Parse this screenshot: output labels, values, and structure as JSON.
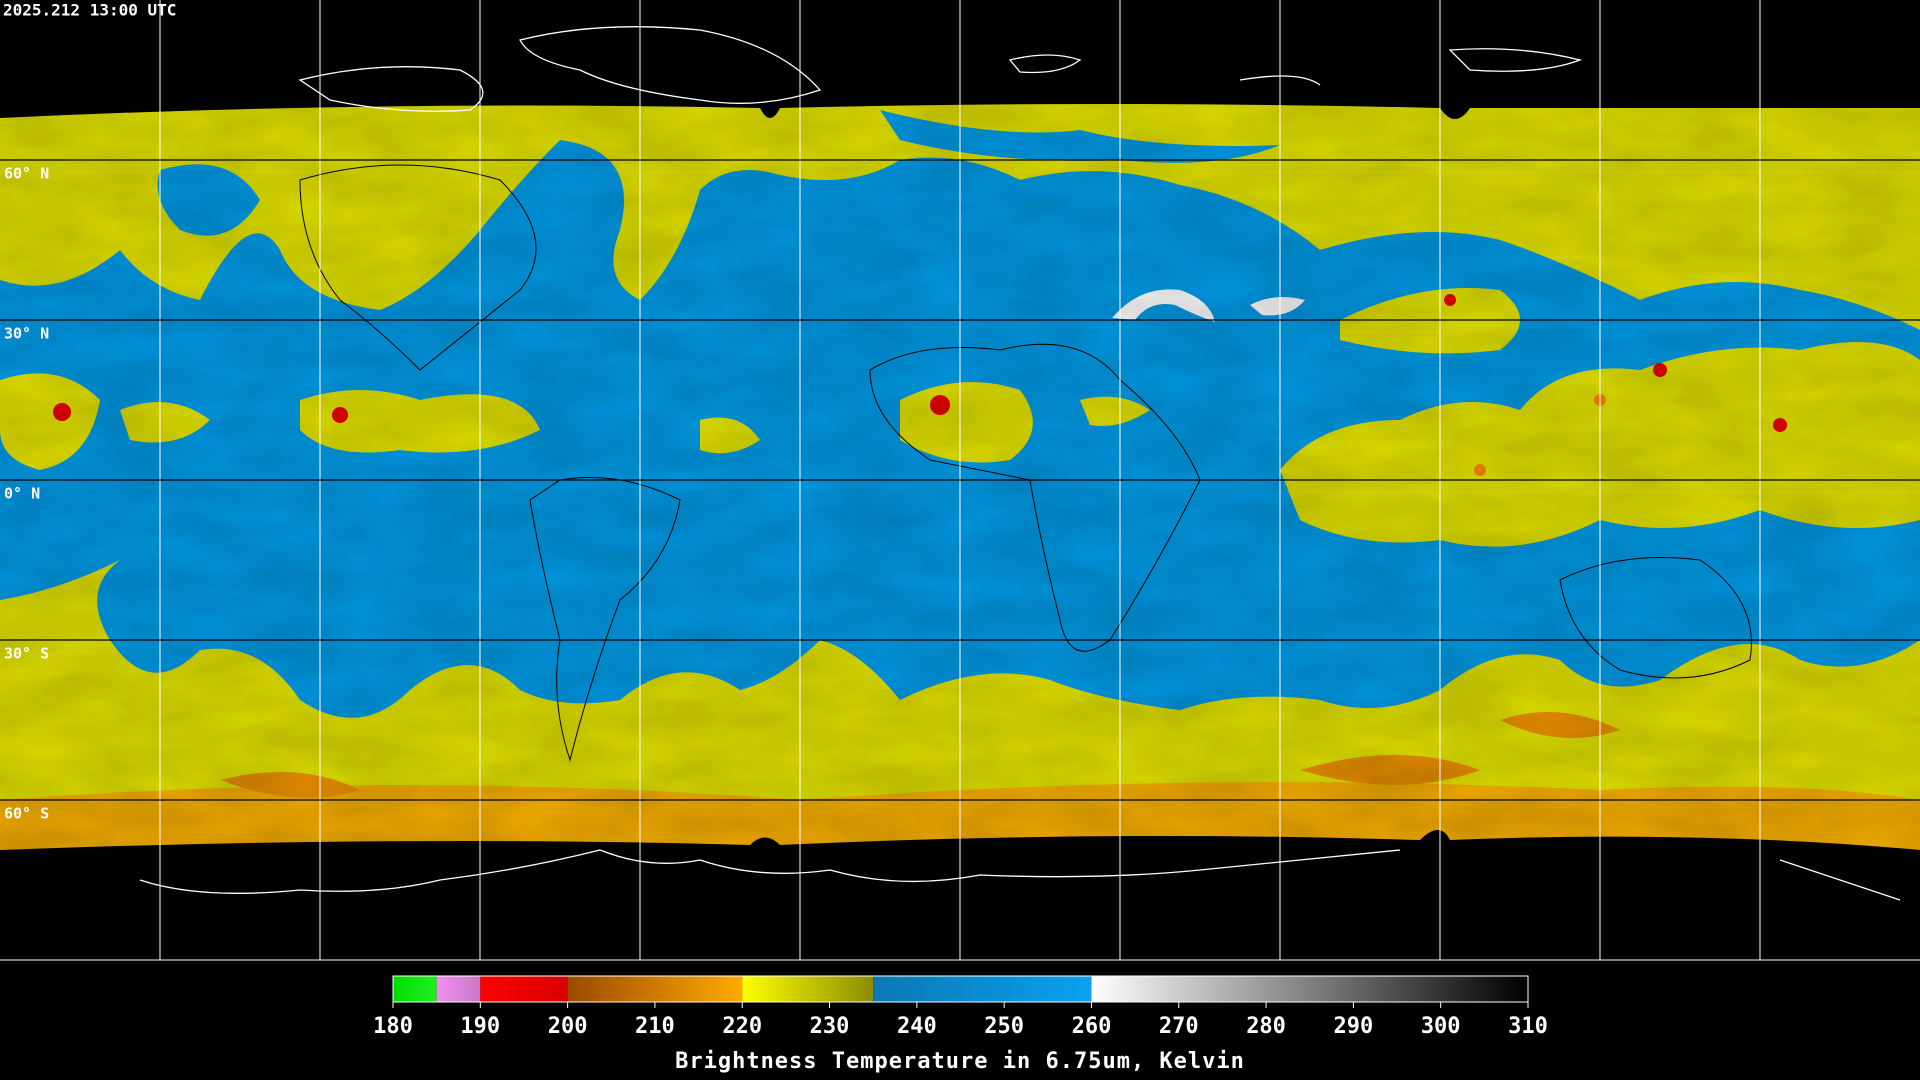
{
  "header": {
    "timestamp": "2025.212 13:00 UTC"
  },
  "map": {
    "lat_lines": [
      {
        "value": 60,
        "label": "60° N"
      },
      {
        "value": 30,
        "label": "30° N"
      },
      {
        "value": 0,
        "label": "0° N"
      },
      {
        "value": -30,
        "label": "30° S"
      },
      {
        "value": -60,
        "label": "60° S"
      }
    ]
  },
  "colorbar": {
    "title": "Brightness Temperature in 6.75um, Kelvin",
    "range": [
      180,
      310
    ],
    "ticks": [
      180,
      190,
      200,
      210,
      220,
      230,
      240,
      250,
      260,
      270,
      280,
      290,
      300,
      310
    ],
    "segments": [
      {
        "from": 180,
        "to": 185,
        "colors": [
          "#00dd00",
          "#22ee22"
        ]
      },
      {
        "from": 185,
        "to": 190,
        "colors": [
          "#f090f0",
          "#c878c8"
        ]
      },
      {
        "from": 190,
        "to": 200,
        "colors": [
          "#ff0000",
          "#d80000"
        ]
      },
      {
        "from": 200,
        "to": 220,
        "colors": [
          "#9a4a00",
          "#ffaa00"
        ]
      },
      {
        "from": 220,
        "to": 235,
        "colors": [
          "#ffff00",
          "#8c8c00"
        ]
      },
      {
        "from": 235,
        "to": 260,
        "colors": [
          "#0a78b4",
          "#0aa0f0"
        ]
      },
      {
        "from": 260,
        "to": 310,
        "colors": [
          "#ffffff",
          "#000000"
        ]
      }
    ]
  }
}
